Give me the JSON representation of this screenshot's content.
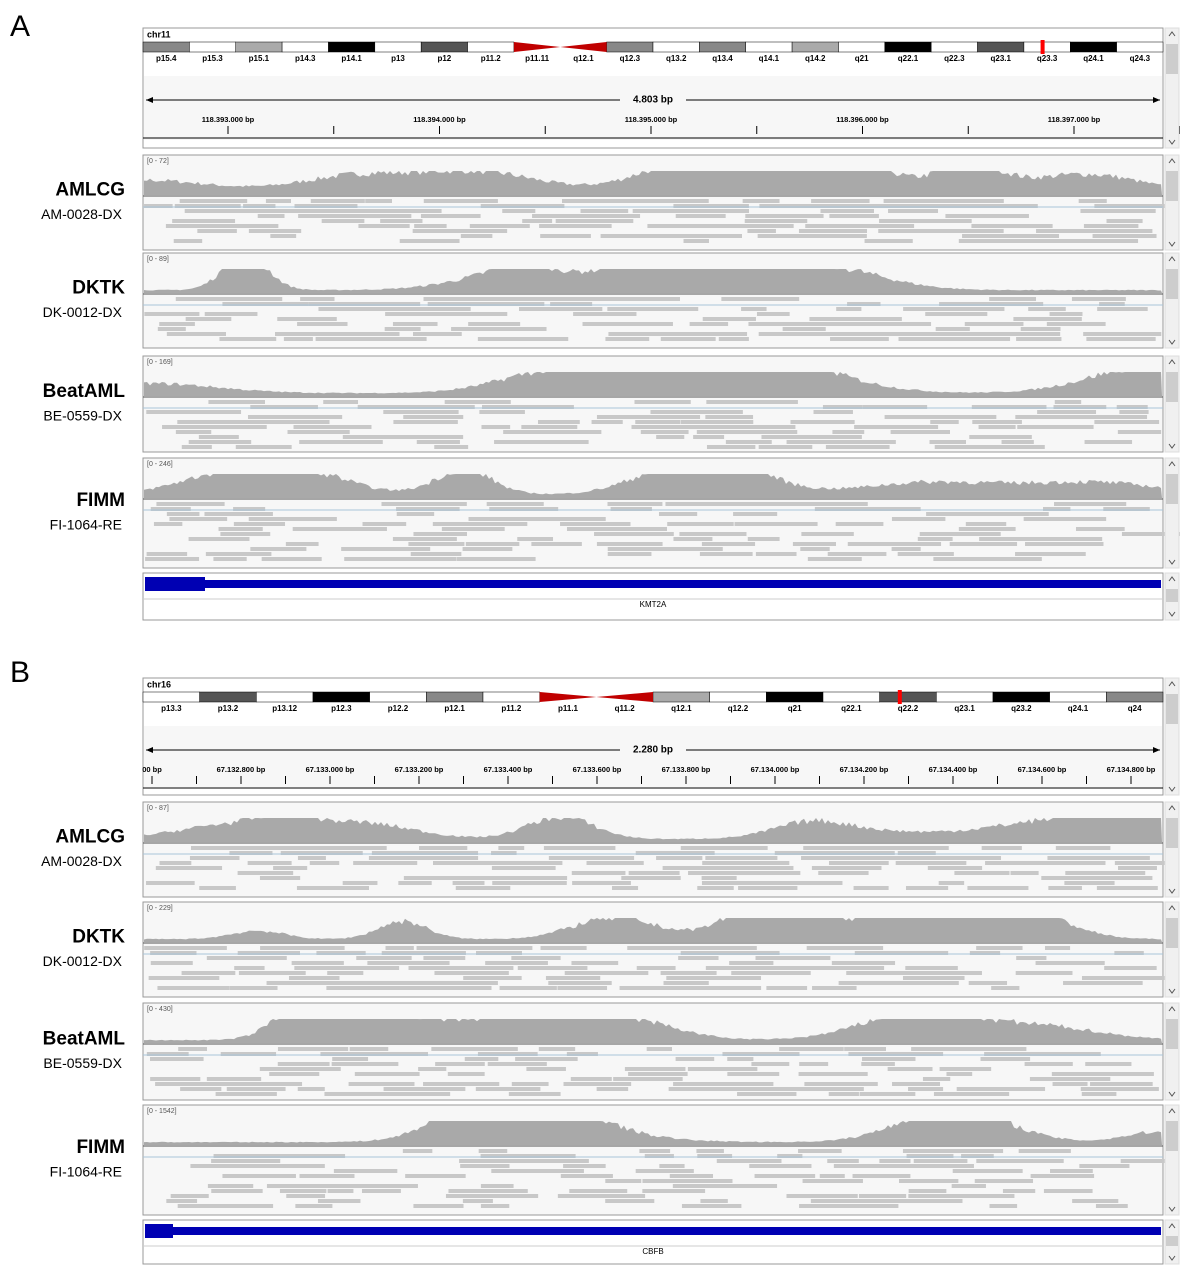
{
  "panels": [
    {
      "label": "A",
      "chromosome": "chr11",
      "bands": [
        "p15.4",
        "p15.3",
        "p15.1",
        "p14.3",
        "p14.1",
        "p13",
        "p12",
        "p11.2",
        "p11.11",
        "q12.1",
        "q12.3",
        "q13.2",
        "q13.4",
        "q14.1",
        "q14.2",
        "q21",
        "q22.1",
        "q22.3",
        "q23.1",
        "q23.3",
        "q24.1",
        "q24.3"
      ],
      "span": "4.803 bp",
      "ruler_ticks": [
        "118.393.000 bp",
        "118.394.000 bp",
        "118.395.000 bp",
        "118.396.000 bp",
        "118.397.000 bp"
      ],
      "tracks": [
        {
          "cohort": "AMLCG",
          "sample": "AM-0028-DX",
          "range": "[0 - 72]"
        },
        {
          "cohort": "DKTK",
          "sample": "DK-0012-DX",
          "range": "[0 - 89]"
        },
        {
          "cohort": "BeatAML",
          "sample": "BE-0559-DX",
          "range": "[0 - 169]"
        },
        {
          "cohort": "FIMM",
          "sample": "FI-1064-RE",
          "range": "[0 - 246]"
        }
      ],
      "gene": "KMT2A"
    },
    {
      "label": "B",
      "chromosome": "chr16",
      "bands": [
        "p13.3",
        "p13.2",
        "p13.12",
        "p12.3",
        "p12.2",
        "p12.1",
        "p11.2",
        "p11.1",
        "q11.2",
        "q12.1",
        "q12.2",
        "q21",
        "q22.1",
        "q22.2",
        "q23.1",
        "q23.2",
        "q24.1",
        "q24"
      ],
      "span": "2.280 bp",
      "ruler_ticks": [
        "00 bp",
        "67.132.800 bp",
        "67.133.000 bp",
        "67.133.200 bp",
        "67.133.400 bp",
        "67.133.600 bp",
        "67.133.800 bp",
        "67.134.000 bp",
        "67.134.200 bp",
        "67.134.400 bp",
        "67.134.600 bp",
        "67.134.800 bp"
      ],
      "tracks": [
        {
          "cohort": "AMLCG",
          "sample": "AM-0028-DX",
          "range": "[0 - 87]"
        },
        {
          "cohort": "DKTK",
          "sample": "DK-0012-DX",
          "range": "[0 - 229]"
        },
        {
          "cohort": "BeatAML",
          "sample": "BE-0559-DX",
          "range": "[0 - 430]"
        },
        {
          "cohort": "FIMM",
          "sample": "FI-1064-RE",
          "range": "[0 - 1542]"
        }
      ],
      "gene": "CBFB"
    }
  ]
}
